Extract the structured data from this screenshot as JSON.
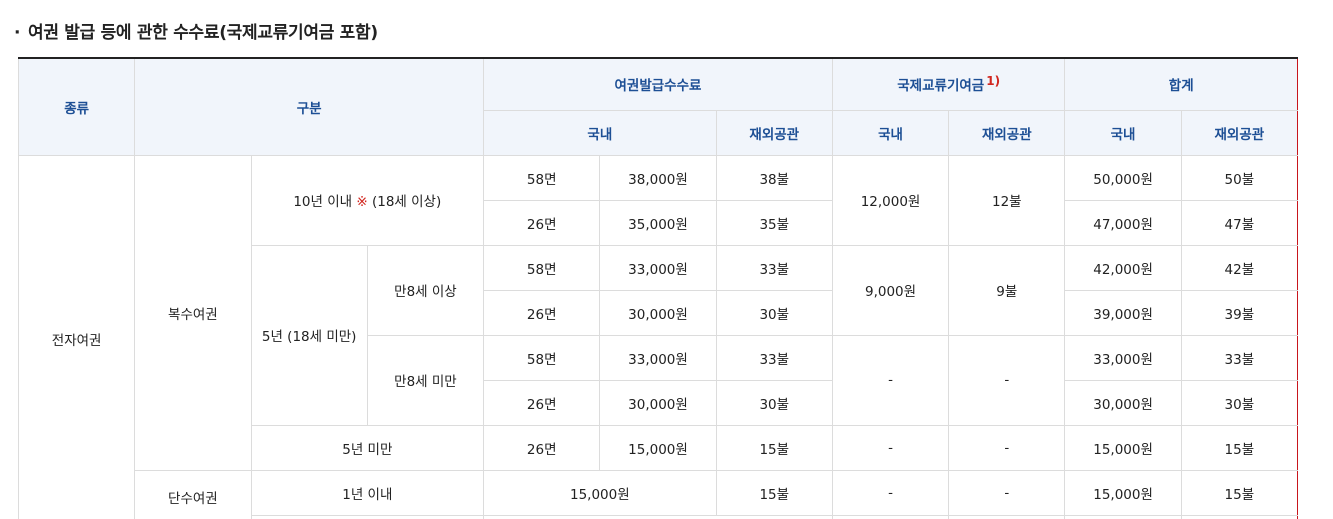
{
  "title": "여권 발급 등에 관한 수수료(국제교류기여금 포함)",
  "header": {
    "kind": "종류",
    "category": "구분",
    "issue_fee": "여권발급수수료",
    "intl_fee": "국제교류기여금",
    "intl_fee_note": "1)",
    "total": "합계",
    "domestic": "국내",
    "overseas": "재외공관"
  },
  "rows": {
    "electronic": "전자여권",
    "multiple": "복수여권",
    "single": "단수여권",
    "ten_years_prefix": "10년 이내 ",
    "ten_years_mark": "※",
    "ten_years_suffix": " (18세 이상)",
    "five_years_u18": "5년 (18세 미만)",
    "age8_over": "만8세 이상",
    "age8_under": "만8세 미만",
    "under5": "5년 미만",
    "within1": "1년 이내",
    "p58": "58면",
    "p26": "26면",
    "r1": {
      "fee": "38,000원",
      "ov": "38불",
      "tot": "50,000원",
      "tov": "50불"
    },
    "r2": {
      "fee": "35,000원",
      "ov": "35불",
      "tot": "47,000원",
      "tov": "47불"
    },
    "g1": {
      "intl": "12,000원",
      "intl_ov": "12불"
    },
    "r3": {
      "fee": "33,000원",
      "ov": "33불",
      "tot": "42,000원",
      "tov": "42불"
    },
    "r4": {
      "fee": "30,000원",
      "ov": "30불",
      "tot": "39,000원",
      "tov": "39불"
    },
    "g2": {
      "intl": "9,000원",
      "intl_ov": "9불"
    },
    "r5": {
      "fee": "33,000원",
      "ov": "33불",
      "tot": "33,000원",
      "tov": "33불"
    },
    "r6": {
      "fee": "30,000원",
      "ov": "30불",
      "tot": "30,000원",
      "tov": "30불"
    },
    "dash": "-",
    "r7": {
      "fee": "15,000원",
      "ov": "15불",
      "tot": "15,000원",
      "tov": "15불"
    },
    "r8": {
      "fee": "15,000원",
      "ov": "15불",
      "tot": "15,000원",
      "tov": "15불"
    }
  }
}
